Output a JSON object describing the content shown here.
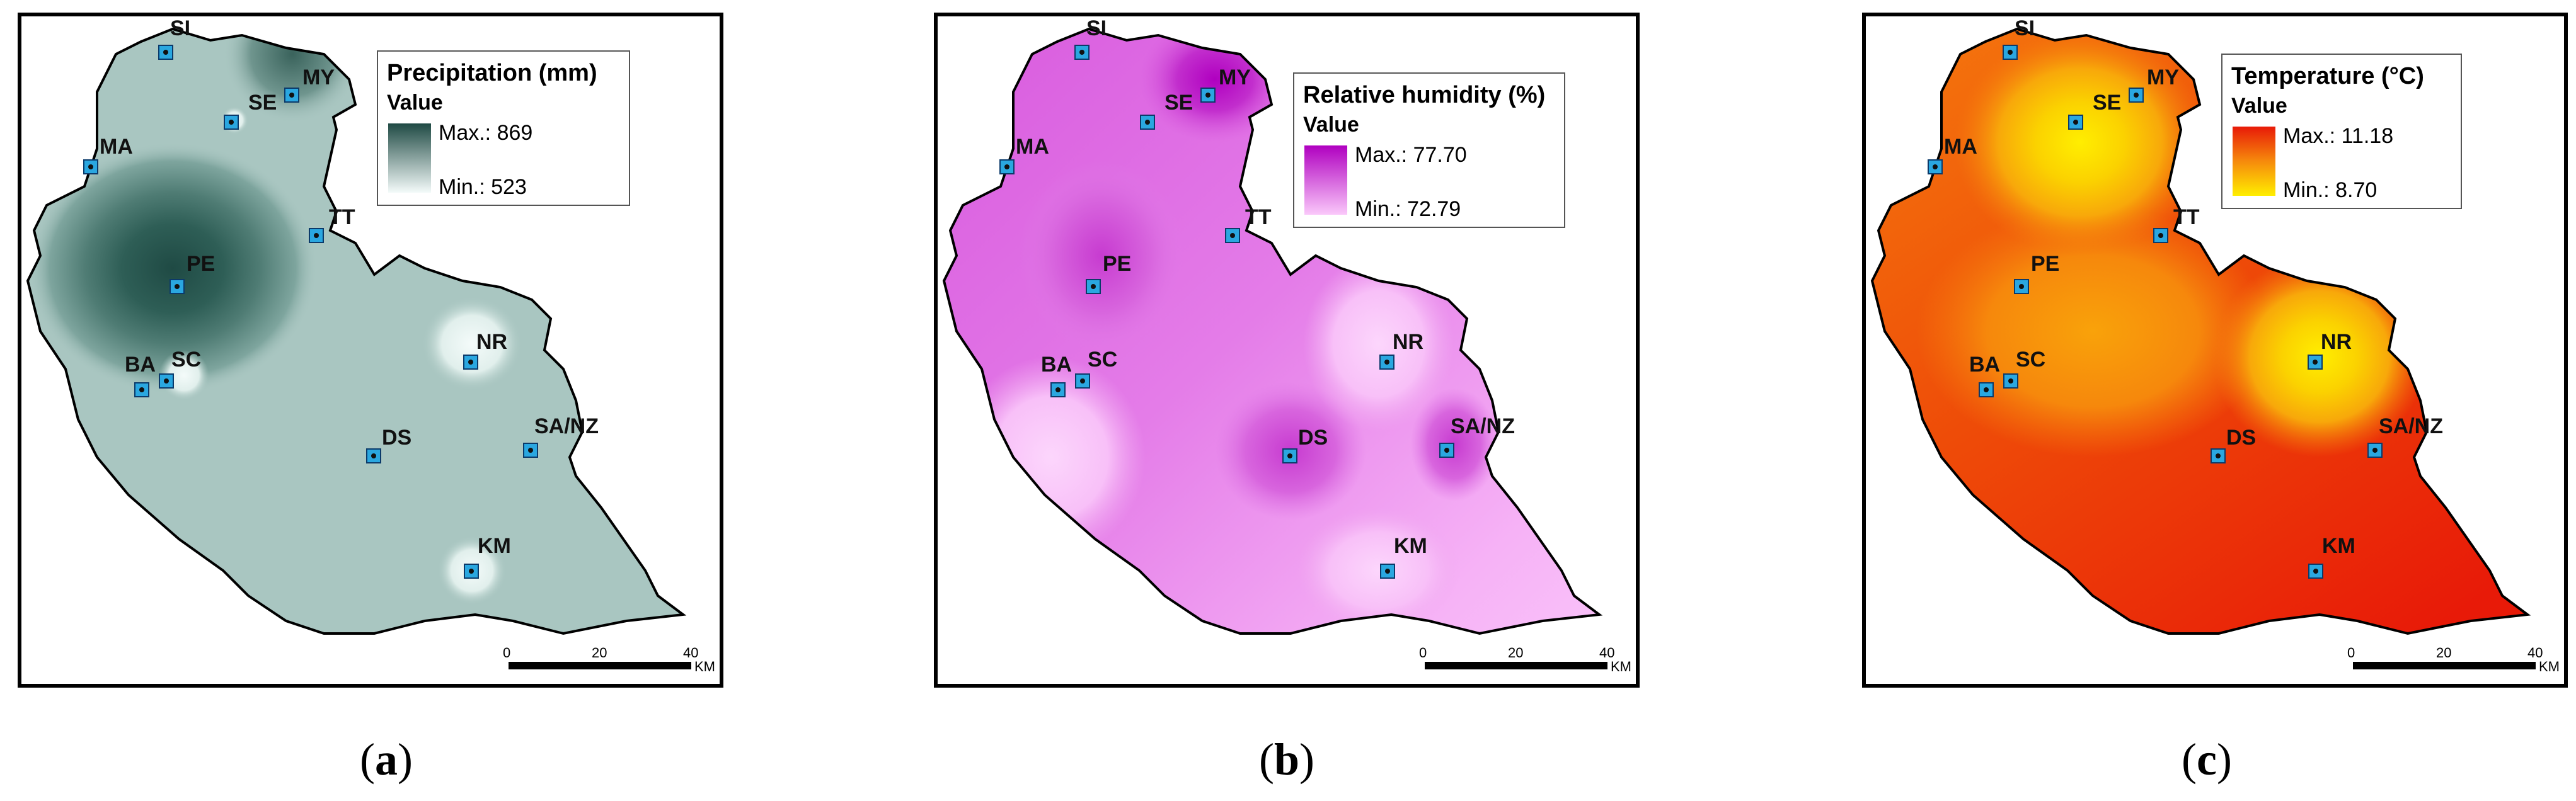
{
  "stations": [
    "SI",
    "MY",
    "SE",
    "MA",
    "TT",
    "PE",
    "NR",
    "BA",
    "SC",
    "DS",
    "SA/NZ",
    "KM"
  ],
  "scalebar": {
    "ticks": [
      "0",
      "20",
      "40"
    ],
    "unit": "KM"
  },
  "panels": [
    {
      "id": "a",
      "variable": "precipitation",
      "caption_label": "a",
      "legend_title": "Precipitation (mm)",
      "legend_subtitle": "Value",
      "max_label": "Max.: 869",
      "min_label": "Min.: 523",
      "max_value": 869,
      "min_value": 523,
      "colors": {
        "max": "#1f4a44",
        "min": "#f4fbfa",
        "base": "#a9c6c1"
      }
    },
    {
      "id": "b",
      "variable": "relative_humidity",
      "caption_label": "b",
      "legend_title": "Relative humidity (%)",
      "legend_subtitle": "Value",
      "max_label": "Max.: 77.70",
      "min_label": "Min.: 72.79",
      "max_value": 77.7,
      "min_value": 72.79,
      "colors": {
        "max": "#b000c0",
        "min": "#fac8fa",
        "base": "#e07ae6"
      }
    },
    {
      "id": "c",
      "variable": "temperature",
      "caption_label": "c",
      "legend_title": "Temperature (°C)",
      "legend_subtitle": "Value",
      "max_label": "Max.: 11.18",
      "min_label": "Min.: 8.70",
      "max_value": 11.18,
      "min_value": 8.7,
      "colors": {
        "max": "#e81a08",
        "min": "#ffee00",
        "base": "#f46a0a"
      }
    }
  ]
}
